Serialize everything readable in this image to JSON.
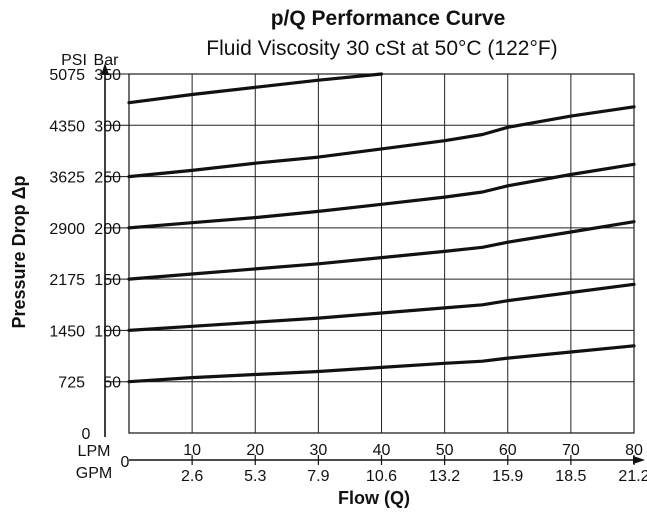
{
  "chart_data": {
    "type": "line",
    "title": "p/Q Performance Curve",
    "subtitle": "Fluid Viscosity 30 cSt at 50°C (122°F)",
    "xlabel": "Flow (Q)",
    "ylabel": "Pressure Drop Δp",
    "y_unit_primary": "Bar",
    "y_unit_secondary": "PSI",
    "x_unit_primary": "LPM",
    "x_unit_secondary": "GPM",
    "xlim": [
      0,
      80
    ],
    "ylim": [
      0,
      350
    ],
    "grid": true,
    "x_ticks_lpm": [
      10,
      20,
      30,
      40,
      50,
      60,
      70,
      80
    ],
    "x_ticks_gpm": [
      "2.6",
      "5.3",
      "7.9",
      "10.6",
      "13.2",
      "15.9",
      "18.5",
      "21.2"
    ],
    "x_origin_label": "0",
    "y_ticks_bar": [
      50,
      100,
      150,
      200,
      250,
      300,
      350
    ],
    "y_ticks_psi": [
      "725",
      "1450",
      "2175",
      "2900",
      "3625",
      "4350",
      "5075"
    ],
    "y_origin_label": "0",
    "series": [
      {
        "x": [
          0,
          10,
          20,
          30,
          40,
          50,
          56,
          60,
          70,
          80
        ],
        "y": [
          50,
          54,
          57,
          60,
          64,
          68,
          70,
          73,
          79,
          85
        ]
      },
      {
        "x": [
          0,
          10,
          20,
          30,
          40,
          50,
          56,
          60,
          70,
          80
        ],
        "y": [
          100,
          104,
          108,
          112,
          117,
          122,
          125,
          129,
          137,
          145
        ]
      },
      {
        "x": [
          0,
          10,
          20,
          30,
          40,
          50,
          56,
          60,
          70,
          80
        ],
        "y": [
          150,
          155,
          160,
          165,
          171,
          177,
          181,
          186,
          196,
          206
        ]
      },
      {
        "x": [
          0,
          10,
          20,
          30,
          40,
          50,
          56,
          60,
          70,
          80
        ],
        "y": [
          200,
          205,
          210,
          216,
          223,
          230,
          235,
          241,
          252,
          262
        ]
      },
      {
        "x": [
          0,
          10,
          20,
          30,
          40,
          50,
          56,
          60,
          70,
          80
        ],
        "y": [
          250,
          256,
          263,
          269,
          277,
          285,
          291,
          298,
          309,
          318
        ]
      },
      {
        "x": [
          0,
          10,
          20,
          30,
          40,
          45
        ],
        "y": [
          322,
          330,
          337,
          344,
          350,
          353
        ]
      }
    ]
  }
}
